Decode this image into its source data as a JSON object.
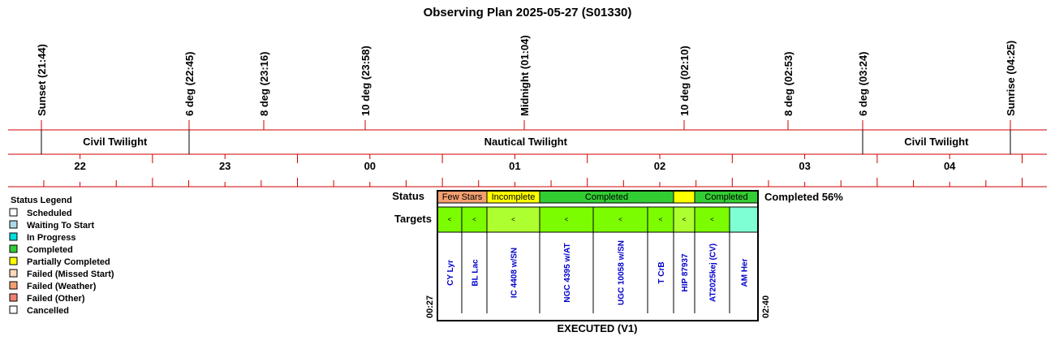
{
  "title": "Observing Plan 2025-05-27 (S01330)",
  "events": [
    {
      "label": "Sunset (21:44)",
      "time": "21:44"
    },
    {
      "label": "6 deg (22:45)",
      "time": "22:45"
    },
    {
      "label": "8 deg (23:16)",
      "time": "23:16"
    },
    {
      "label": "10 deg (23:58)",
      "time": "23:58"
    },
    {
      "label": "Midnight (01:04)",
      "time": "01:04"
    },
    {
      "label": "10 deg (02:10)",
      "time": "02:10"
    },
    {
      "label": "8 deg (02:53)",
      "time": "02:53"
    },
    {
      "label": "6 deg (03:24)",
      "time": "03:24"
    },
    {
      "label": "Sunrise (04:25)",
      "time": "04:25"
    }
  ],
  "twilight": [
    {
      "label": "Civil Twilight",
      "from": "21:44",
      "to": "22:45"
    },
    {
      "label": "Nautical Twilight",
      "from": "22:45",
      "to": "03:24"
    },
    {
      "label": "Civil Twilight",
      "from": "03:24",
      "to": "04:25"
    }
  ],
  "hours": [
    "22",
    "23",
    "00",
    "01",
    "02",
    "03",
    "04"
  ],
  "legend": {
    "title": "Status Legend",
    "items": [
      {
        "label": "Scheduled",
        "color": "#ffffff"
      },
      {
        "label": "Waiting To Start",
        "color": "#add8e6"
      },
      {
        "label": "In Progress",
        "color": "#00dede"
      },
      {
        "label": "Completed",
        "color": "#32cd32"
      },
      {
        "label": "Partially Completed",
        "color": "#ffff00"
      },
      {
        "label": "Failed (Missed Start)",
        "color": "#ffdab9"
      },
      {
        "label": "Failed (Weather)",
        "color": "#f4a070"
      },
      {
        "label": "Failed (Other)",
        "color": "#f08070"
      },
      {
        "label": "Cancelled",
        "color": "#ffffff"
      }
    ]
  },
  "plan": {
    "status_label": "Status",
    "targets_label": "Targets",
    "summary": "Completed 56%",
    "start_time": "00:27",
    "end_time": "02:40",
    "footer": "EXECUTED (V1)",
    "status_segments": [
      {
        "label": "Few Stars",
        "span": [
          0,
          2
        ],
        "color": "#f4a070"
      },
      {
        "label": "Incomplete",
        "span": [
          2,
          3
        ],
        "color": "#ffff00"
      },
      {
        "label": "Completed",
        "span": [
          3,
          6
        ],
        "color": "#32cd32"
      },
      {
        "label": "",
        "span": [
          6,
          7
        ],
        "color": "#ffff00"
      },
      {
        "label": "Completed",
        "span": [
          7,
          9
        ],
        "color": "#32cd32"
      }
    ],
    "targets": [
      {
        "name": "CY Lyr",
        "color": "#7cfc00",
        "mark": "<"
      },
      {
        "name": "BL Lac",
        "color": "#7cfc00",
        "mark": "<"
      },
      {
        "name": "IC 4408 w/SN",
        "color": "#adff2f",
        "mark": "<"
      },
      {
        "name": "NGC 4395 w/AT",
        "color": "#7cfc00",
        "mark": "<"
      },
      {
        "name": "UGC 10058 w/SN",
        "color": "#7cfc00",
        "mark": "<"
      },
      {
        "name": "T CrB",
        "color": "#7cfc00",
        "mark": "<"
      },
      {
        "name": "HIP 87937",
        "color": "#adff2f",
        "mark": "<"
      },
      {
        "name": "AT2025kej (CV)",
        "color": "#7cfc00",
        "mark": "<"
      },
      {
        "name": "AM Her",
        "color": "#7fffd4",
        "mark": ""
      }
    ]
  }
}
